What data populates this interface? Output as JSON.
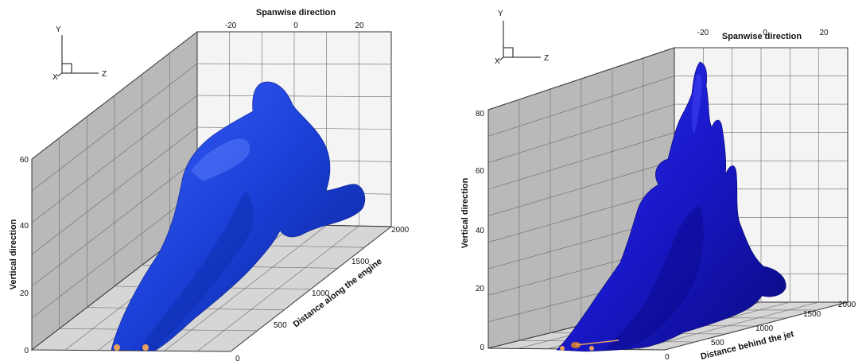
{
  "colors": {
    "plume_left": "#1a3fd6",
    "plume_right": "#1818c8",
    "grid": "#6a6a6a",
    "wall_back": "#f4f4f4",
    "wall_side": "#b9b9b9",
    "floor": "#d6d6d6",
    "nozzle": "#e8a060"
  },
  "chart_data": [
    {
      "type": "3d-isosurface",
      "title": "",
      "axes": {
        "spanwise": {
          "label": "Spanwise direction",
          "ticks": [
            "-20",
            "0",
            "20"
          ]
        },
        "vertical": {
          "label": "Vertical direction",
          "ticks": [
            "0",
            "20",
            "40",
            "60"
          ]
        },
        "streamwise": {
          "label": "Distance along the engine",
          "ticks": [
            "0",
            "500",
            "1000",
            "1500",
            "2000"
          ]
        }
      },
      "triad": {
        "y": "Y",
        "z": "Z",
        "x": "X"
      }
    },
    {
      "type": "3d-isosurface",
      "title": "",
      "axes": {
        "spanwise": {
          "label": "Spanwise direction",
          "ticks": [
            "-20",
            "0",
            "20"
          ]
        },
        "vertical": {
          "label": "Vertical direction",
          "ticks": [
            "0",
            "20",
            "40",
            "60",
            "80"
          ]
        },
        "streamwise": {
          "label": "Distance behind the jet",
          "ticks": [
            "0",
            "500",
            "1000",
            "1500",
            "2000"
          ]
        }
      },
      "triad": {
        "y": "Y",
        "z": "Z",
        "x": "X"
      }
    }
  ]
}
